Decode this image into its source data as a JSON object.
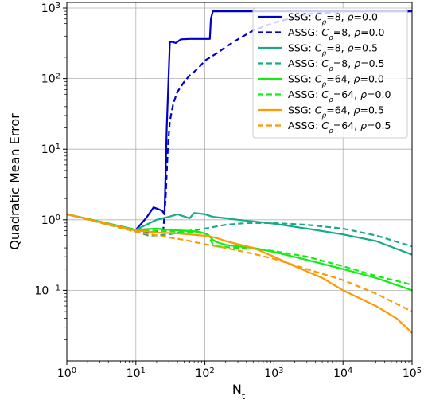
{
  "chart_data": {
    "type": "line",
    "title": "",
    "xlabel": "N",
    "xlabel_sub": "t",
    "ylabel": "Quadratic Mean Error",
    "xscale": "log",
    "yscale": "log",
    "xlim": [
      1,
      100000
    ],
    "ylim": [
      0.01,
      1200
    ],
    "grid": true,
    "legend_position": "top-right",
    "x_ticks": [
      {
        "value": 1,
        "base": "10",
        "exp": "0"
      },
      {
        "value": 10,
        "base": "10",
        "exp": "1"
      },
      {
        "value": 100,
        "base": "10",
        "exp": "2"
      },
      {
        "value": 1000,
        "base": "10",
        "exp": "3"
      },
      {
        "value": 10000,
        "base": "10",
        "exp": "4"
      },
      {
        "value": 100000,
        "base": "10",
        "exp": "5"
      }
    ],
    "y_ticks": [
      {
        "value": 0.1,
        "base": "10",
        "exp": "−1"
      },
      {
        "value": 1,
        "base": "10",
        "exp": "0"
      },
      {
        "value": 10,
        "base": "10",
        "exp": "1"
      },
      {
        "value": 100,
        "base": "10",
        "exp": "2"
      },
      {
        "value": 1000,
        "base": "10",
        "exp": "3"
      }
    ],
    "series": [
      {
        "name": "SSG: C_ρ=8, ρ=0.0",
        "prefix": "SSG: ",
        "cval": "8",
        "rho": "0.0",
        "color": "#0000cc",
        "dash": "solid",
        "x": [
          1,
          10,
          14,
          18,
          24,
          26,
          28,
          31,
          34,
          38,
          45,
          60,
          80,
          100,
          118,
          122,
          130,
          200,
          1000,
          10000,
          100000
        ],
        "y": [
          1.2,
          0.72,
          1.05,
          1.5,
          1.35,
          1.2,
          20,
          330,
          330,
          320,
          360,
          365,
          365,
          365,
          365,
          700,
          900,
          900,
          900,
          900,
          900
        ]
      },
      {
        "name": "ASSG: C_ρ=8, ρ=0.0",
        "prefix": "ASSG: ",
        "cval": "8",
        "rho": "0.0",
        "color": "#0000cc",
        "dash": "dashed",
        "x": [
          1,
          10,
          15,
          20,
          25,
          27,
          29,
          31,
          35,
          40,
          50,
          60,
          80,
          100,
          150,
          200,
          300,
          500,
          1000,
          3000,
          10000,
          100000
        ],
        "y": [
          1.2,
          0.68,
          0.66,
          0.68,
          0.72,
          2,
          10,
          25,
          45,
          65,
          90,
          110,
          140,
          180,
          230,
          280,
          360,
          480,
          620,
          820,
          900,
          900
        ]
      },
      {
        "name": "SSG: C_ρ=8, ρ=0.5",
        "prefix": "SSG: ",
        "cval": "8",
        "rho": "0.5",
        "color": "#1aaa88",
        "dash": "solid",
        "x": [
          1,
          10,
          20,
          30,
          40,
          60,
          70,
          100,
          130,
          200,
          300,
          500,
          1000,
          3000,
          10000,
          30000,
          100000
        ],
        "y": [
          1.2,
          0.72,
          1.0,
          1.1,
          1.2,
          1.05,
          1.25,
          1.2,
          1.1,
          1.05,
          1.0,
          0.95,
          0.88,
          0.75,
          0.62,
          0.5,
          0.32
        ]
      },
      {
        "name": "ASSG: C_ρ=8, ρ=0.5",
        "prefix": "ASSG: ",
        "cval": "8",
        "rho": "0.5",
        "color": "#1aaa88",
        "dash": "dashed",
        "x": [
          1,
          10,
          15,
          20,
          30,
          50,
          100,
          200,
          400,
          1000,
          3000,
          10000,
          30000,
          100000
        ],
        "y": [
          1.2,
          0.68,
          0.6,
          0.6,
          0.62,
          0.68,
          0.75,
          0.85,
          0.9,
          0.9,
          0.85,
          0.75,
          0.6,
          0.42
        ]
      },
      {
        "name": "SSG: C_ρ=64, ρ=0.0",
        "prefix": "SSG: ",
        "cval": "64",
        "rho": "0.0",
        "color": "#11ee11",
        "dash": "solid",
        "x": [
          1,
          10,
          20,
          30,
          50,
          80,
          110,
          130,
          150,
          200,
          300,
          500,
          1000,
          3000,
          10000,
          30000,
          100000
        ],
        "y": [
          1.2,
          0.72,
          0.75,
          0.72,
          0.7,
          0.68,
          0.62,
          0.52,
          0.48,
          0.44,
          0.42,
          0.4,
          0.35,
          0.27,
          0.2,
          0.15,
          0.1
        ]
      },
      {
        "name": "ASSG: C_ρ=64, ρ=0.0",
        "prefix": "ASSG: ",
        "cval": "64",
        "rho": "0.0",
        "color": "#11ee11",
        "dash": "dashed",
        "x": [
          1,
          10,
          20,
          40,
          80,
          110,
          130,
          150,
          200,
          300,
          500,
          1000,
          3000,
          10000,
          30000,
          100000
        ],
        "y": [
          1.2,
          0.7,
          0.7,
          0.68,
          0.66,
          0.62,
          0.45,
          0.42,
          0.41,
          0.4,
          0.39,
          0.36,
          0.3,
          0.22,
          0.16,
          0.12
        ]
      },
      {
        "name": "SSG: C_ρ=64, ρ=0.5",
        "prefix": "SSG: ",
        "cval": "64",
        "rho": "0.5",
        "color": "#ff9900",
        "dash": "solid",
        "x": [
          1,
          10,
          15,
          20,
          40,
          60,
          90,
          120,
          150,
          200,
          300,
          500,
          1000,
          2000,
          5000,
          10000,
          30000,
          60000,
          100000
        ],
        "y": [
          1.2,
          0.7,
          0.68,
          0.66,
          0.64,
          0.62,
          0.6,
          0.58,
          0.55,
          0.5,
          0.45,
          0.4,
          0.3,
          0.22,
          0.15,
          0.1,
          0.06,
          0.04,
          0.025
        ]
      },
      {
        "name": "ASSG: C_ρ=64, ρ=0.5",
        "prefix": "ASSG: ",
        "cval": "64",
        "rho": "0.5",
        "color": "#ff9900",
        "dash": "dashed",
        "x": [
          1,
          10,
          20,
          50,
          100,
          200,
          500,
          1000,
          3000,
          10000,
          30000,
          100000
        ],
        "y": [
          1.2,
          0.68,
          0.6,
          0.52,
          0.45,
          0.4,
          0.33,
          0.28,
          0.2,
          0.14,
          0.09,
          0.05
        ]
      }
    ]
  }
}
